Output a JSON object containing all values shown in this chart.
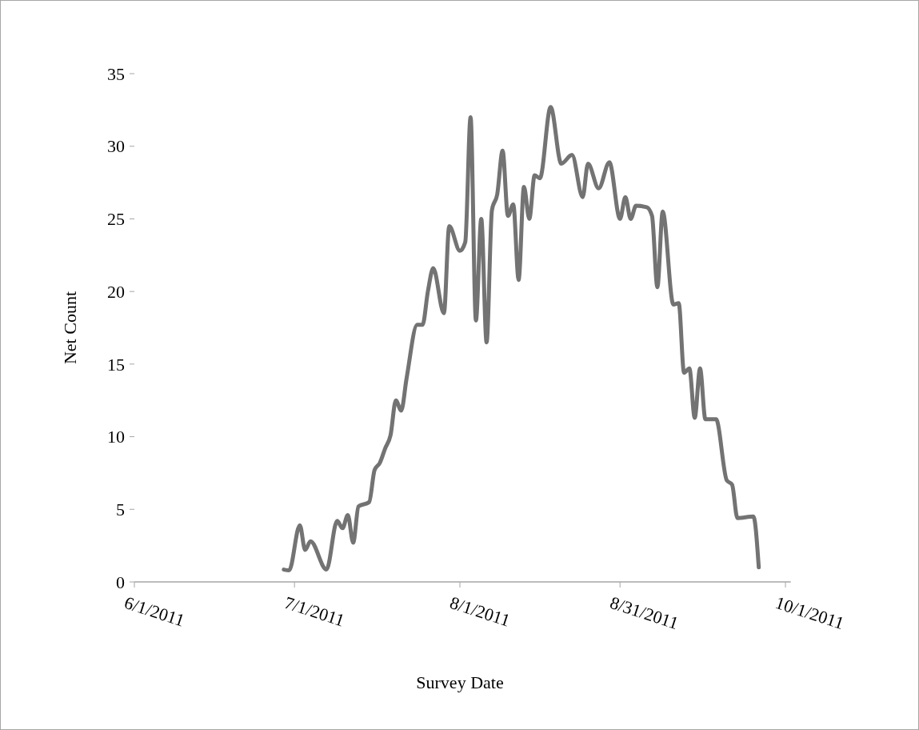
{
  "chart_data": {
    "type": "line",
    "xlabel": "Survey Date",
    "ylabel": "Net Count",
    "x": [
      "2011-06-29",
      "2011-06-30",
      "2011-07-02",
      "2011-07-03",
      "2011-07-04",
      "2011-07-07",
      "2011-07-09",
      "2011-07-10",
      "2011-07-11",
      "2011-07-12",
      "2011-07-13",
      "2011-07-15",
      "2011-07-16",
      "2011-07-17",
      "2011-07-18",
      "2011-07-19",
      "2011-07-20",
      "2011-07-21",
      "2011-07-22",
      "2011-07-24",
      "2011-07-25",
      "2011-07-26",
      "2011-07-27",
      "2011-07-29",
      "2011-07-30",
      "2011-08-01",
      "2011-08-02",
      "2011-08-03",
      "2011-08-04",
      "2011-08-05",
      "2011-08-06",
      "2011-08-07",
      "2011-08-08",
      "2011-08-09",
      "2011-08-10",
      "2011-08-11",
      "2011-08-12",
      "2011-08-13",
      "2011-08-14",
      "2011-08-15",
      "2011-08-16",
      "2011-08-18",
      "2011-08-20",
      "2011-08-22",
      "2011-08-24",
      "2011-08-25",
      "2011-08-27",
      "2011-08-29",
      "2011-08-31",
      "2011-09-01",
      "2011-09-02",
      "2011-09-03",
      "2011-09-05",
      "2011-09-06",
      "2011-09-07",
      "2011-09-08",
      "2011-09-10",
      "2011-09-11",
      "2011-09-12",
      "2011-09-13",
      "2011-09-14",
      "2011-09-15",
      "2011-09-16",
      "2011-09-18",
      "2011-09-20",
      "2011-09-21",
      "2011-09-22",
      "2011-09-25",
      "2011-09-26"
    ],
    "series": [
      {
        "color": "#737373",
        "values": [
          0.85,
          0.8,
          3.9,
          2.2,
          2.8,
          0.85,
          4.2,
          3.7,
          4.6,
          2.7,
          5.2,
          5.5,
          7.7,
          8.2,
          9.2,
          10.1,
          12.5,
          11.8,
          14.0,
          17.7,
          17.7,
          20.0,
          21.6,
          18.5,
          24.5,
          22.8,
          23.4,
          32.0,
          18.0,
          25.0,
          16.5,
          25.6,
          26.7,
          29.7,
          25.2,
          26.0,
          20.8,
          27.2,
          25.0,
          28.0,
          27.8,
          32.7,
          28.8,
          29.4,
          26.5,
          28.8,
          27.1,
          28.9,
          25.0,
          26.5,
          25.0,
          25.9,
          25.8,
          25.2,
          20.3,
          25.5,
          19.1,
          19.2,
          14.4,
          14.7,
          11.3,
          14.7,
          11.2,
          11.2,
          7.0,
          6.7,
          4.4,
          4.5,
          1.0
        ]
      }
    ],
    "xlim": [
      "2011-06-01",
      "2011-10-02"
    ],
    "xticks": [
      {
        "value": "2011-06-01",
        "label": "6/1/2011"
      },
      {
        "value": "2011-07-01",
        "label": "7/1/2011"
      },
      {
        "value": "2011-08-01",
        "label": "8/1/2011"
      },
      {
        "value": "2011-08-31",
        "label": "8/31/2011"
      },
      {
        "value": "2011-10-01",
        "label": "10/1/2011"
      }
    ],
    "ylim": [
      0,
      35
    ],
    "yticks": [
      0,
      5,
      10,
      15,
      20,
      25,
      30,
      35
    ],
    "grid": false,
    "marker": "none",
    "line_style": "solid"
  }
}
